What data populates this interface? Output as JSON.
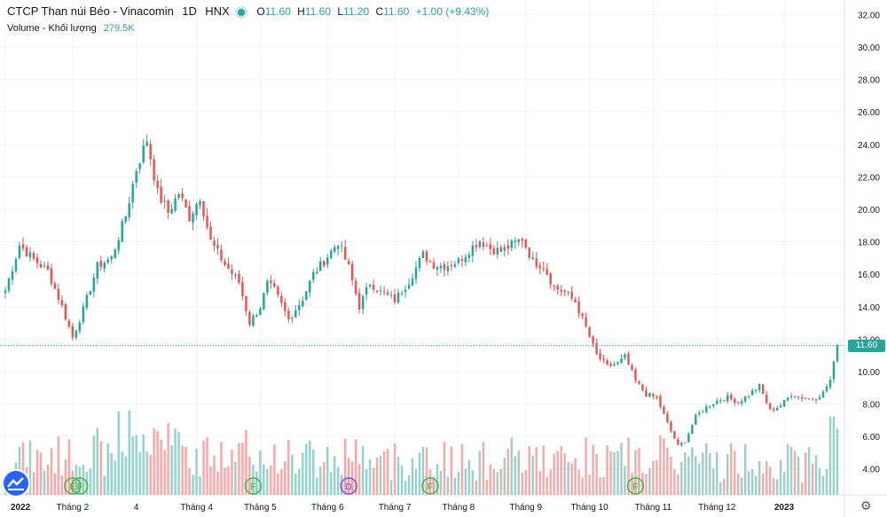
{
  "header": {
    "title": "CTCP Than núi Béo - Vinacomin",
    "interval": "1D",
    "exchange": "HNX",
    "ohlc": [
      {
        "label": "O",
        "value": "11.60"
      },
      {
        "label": "H",
        "value": "11.60"
      },
      {
        "label": "L",
        "value": "11.20"
      },
      {
        "label": "C",
        "value": "11.60"
      }
    ],
    "change": "+1.00 (+9.43%)",
    "volume_label": "Volume - Khối lượng",
    "volume_value": "279.5K"
  },
  "last_price_label": "11.60",
  "icons": {
    "settings": "gear-icon",
    "logo": "tradingview-logo-icon"
  },
  "colors": {
    "up": "#26a69a",
    "down": "#ef5350",
    "up_vol": "#99d1ca",
    "down_vol": "#f7a9a7"
  },
  "chart_data": {
    "type": "candlestick",
    "y_ticks": [
      "32.00",
      "30.00",
      "28.00",
      "26.00",
      "24.00",
      "22.00",
      "20.00",
      "18.00",
      "16.00",
      "14.00",
      "12.00",
      "10.00",
      "8.00",
      "6.00",
      "4.00"
    ],
    "ylim": [
      2.4,
      32.9
    ],
    "x_ticks": [
      "2022",
      "Tháng 2",
      "4",
      "Tháng 4",
      "Tháng 5",
      "Tháng 6",
      "Tháng 7",
      "Tháng 8",
      "Tháng 9",
      "Tháng 10",
      "Tháng 11",
      "Tháng 12",
      "2023"
    ],
    "x_tick_index": [
      0,
      19,
      37,
      54,
      72,
      91,
      110,
      128,
      147,
      165,
      183,
      201,
      220
    ],
    "num_bars": 236,
    "event_markers": [
      {
        "letter": "E",
        "index": 19
      },
      {
        "letter": "F",
        "index": 21
      },
      {
        "letter": "F",
        "index": 70
      },
      {
        "letter": "D",
        "index": 97
      },
      {
        "letter": "F",
        "index": 120
      },
      {
        "letter": "F",
        "index": 178
      }
    ],
    "anchors": [
      [
        0,
        15.0
      ],
      [
        4,
        17.8
      ],
      [
        8,
        16.9
      ],
      [
        12,
        16.2
      ],
      [
        16,
        14.0
      ],
      [
        19,
        12.1
      ],
      [
        22,
        13.8
      ],
      [
        26,
        16.5
      ],
      [
        30,
        17.0
      ],
      [
        34,
        19.6
      ],
      [
        37,
        22.5
      ],
      [
        40,
        24.3
      ],
      [
        43,
        21.0
      ],
      [
        46,
        19.8
      ],
      [
        49,
        21.0
      ],
      [
        52,
        19.5
      ],
      [
        55,
        20.8
      ],
      [
        58,
        18.0
      ],
      [
        62,
        16.6
      ],
      [
        66,
        15.5
      ],
      [
        69,
        13.0
      ],
      [
        72,
        14.0
      ],
      [
        74,
        15.4
      ],
      [
        76,
        15.0
      ],
      [
        80,
        13.2
      ],
      [
        84,
        14.5
      ],
      [
        87,
        16.0
      ],
      [
        90,
        16.8
      ],
      [
        94,
        18.0
      ],
      [
        97,
        16.4
      ],
      [
        100,
        14.0
      ],
      [
        103,
        15.5
      ],
      [
        106,
        14.9
      ],
      [
        110,
        14.4
      ],
      [
        114,
        15.6
      ],
      [
        118,
        17.2
      ],
      [
        121,
        16.6
      ],
      [
        124,
        16.5
      ],
      [
        128,
        16.8
      ],
      [
        131,
        17.5
      ],
      [
        134,
        18.1
      ],
      [
        137,
        17.6
      ],
      [
        140,
        17.4
      ],
      [
        143,
        17.8
      ],
      [
        146,
        18.2
      ],
      [
        149,
        16.8
      ],
      [
        152,
        16.5
      ],
      [
        155,
        15.2
      ],
      [
        158,
        14.9
      ],
      [
        161,
        14.3
      ],
      [
        164,
        12.7
      ],
      [
        167,
        11.0
      ],
      [
        170,
        10.3
      ],
      [
        173,
        10.5
      ],
      [
        175,
        10.9
      ],
      [
        178,
        9.4
      ],
      [
        181,
        8.6
      ],
      [
        184,
        8.4
      ],
      [
        187,
        6.8
      ],
      [
        190,
        5.4
      ],
      [
        192,
        5.7
      ],
      [
        195,
        7.2
      ],
      [
        198,
        7.8
      ],
      [
        201,
        8.2
      ],
      [
        204,
        8.4
      ],
      [
        207,
        8.1
      ],
      [
        210,
        8.6
      ],
      [
        213,
        9.1
      ],
      [
        216,
        7.6
      ],
      [
        219,
        7.9
      ],
      [
        222,
        8.6
      ],
      [
        225,
        8.4
      ],
      [
        228,
        8.3
      ],
      [
        231,
        8.7
      ],
      [
        233,
        9.5
      ],
      [
        234,
        10.6
      ],
      [
        235,
        11.6
      ]
    ]
  }
}
